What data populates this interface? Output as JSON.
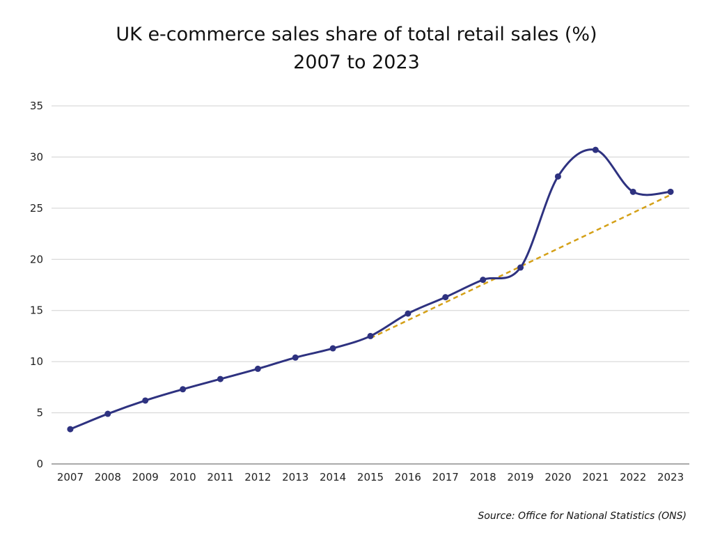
{
  "chart_data": {
    "type": "line",
    "title": "UK e-commerce sales share of total retail sales (%)",
    "subtitle": "2007 to 2023",
    "xlabel": "",
    "ylabel": "",
    "categories": [
      "2007",
      "2008",
      "2009",
      "2010",
      "2011",
      "2012",
      "2013",
      "2014",
      "2015",
      "2016",
      "2017",
      "2018",
      "2019",
      "2020",
      "2021",
      "2022",
      "2023"
    ],
    "ylim": [
      0,
      35
    ],
    "yticks": [
      0,
      5,
      10,
      15,
      20,
      25,
      30,
      35
    ],
    "grid": true,
    "legend": "none",
    "series": [
      {
        "values": [
          3.4,
          4.9,
          6.2,
          7.3,
          8.3,
          9.3,
          10.4,
          11.3,
          12.5,
          14.7,
          16.3,
          18.0,
          19.2,
          28.1,
          30.7,
          26.6,
          26.6
        ],
        "color": "#2e3280",
        "style": "solid-smooth-with-markers"
      },
      {
        "x": [
          "2015",
          "2023"
        ],
        "values": [
          12.3,
          26.3
        ],
        "color": "#d4a017",
        "style": "dashed-trend"
      }
    ]
  },
  "source": "Source: Office for National Statistics (ONS)"
}
